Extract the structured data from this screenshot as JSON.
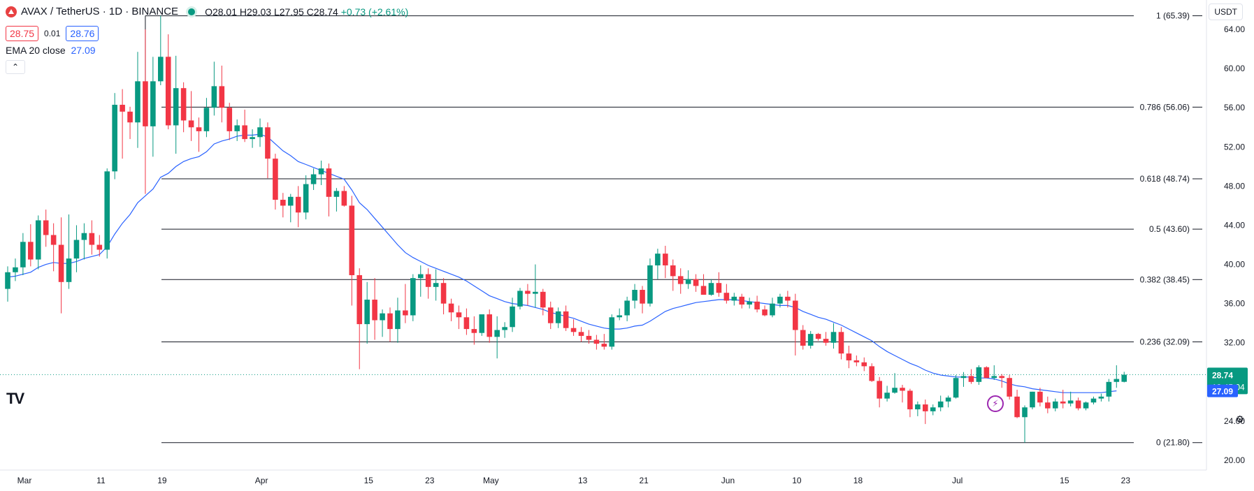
{
  "header": {
    "symbol": "AVAX / TetherUS · 1D · BINANCE",
    "open": "O28.01",
    "high": "H29.03",
    "low": "L27.95",
    "close": "C28.74",
    "change": "+0.73 (+2.61%)"
  },
  "quote": {
    "bid": "28.75",
    "spread": "0.01",
    "ask": "28.76"
  },
  "indicator": {
    "label": "EMA 20 close",
    "value": "27.09"
  },
  "currency": "USDT",
  "collapse_glyph": "⌃",
  "tv_logo": "TV",
  "bolt_glyph": "⚡",
  "gear_glyph": "⚙",
  "colors": {
    "up": "#089981",
    "down": "#f23645",
    "ema": "#2962ff",
    "fib": "#131722",
    "last": "#089981"
  },
  "chart_data": {
    "type": "candlestick",
    "yaxis": {
      "min": 19,
      "max": 67,
      "ticks": [
        "20.00",
        "24.00",
        "28.00",
        "32.00",
        "36.00",
        "40.00",
        "44.00",
        "48.00",
        "52.00",
        "56.00",
        "60.00",
        "64.00"
      ]
    },
    "xaxis": {
      "ticks": [
        {
          "label": "Mar",
          "i": 0
        },
        {
          "label": "11",
          "i": 10
        },
        {
          "label": "19",
          "i": 18
        },
        {
          "label": "Apr",
          "i": 31
        },
        {
          "label": "15",
          "i": 45
        },
        {
          "label": "23",
          "i": 53
        },
        {
          "label": "May",
          "i": 61
        },
        {
          "label": "13",
          "i": 73
        },
        {
          "label": "21",
          "i": 81
        },
        {
          "label": "Jun",
          "i": 92
        },
        {
          "label": "10",
          "i": 101
        },
        {
          "label": "18",
          "i": 109
        },
        {
          "label": "Jul",
          "i": 122
        },
        {
          "label": "15",
          "i": 136
        },
        {
          "label": "23",
          "i": 144
        }
      ]
    },
    "fib_levels": [
      {
        "label": "1 (65.39)",
        "value": 65.39
      },
      {
        "label": "0.786 (56.06)",
        "value": 56.06
      },
      {
        "label": "0.618 (48.74)",
        "value": 48.74
      },
      {
        "label": "0.5 (43.60)",
        "value": 43.6
      },
      {
        "label": "0.382 (38.45)",
        "value": 38.45
      },
      {
        "label": "0.236 (32.09)",
        "value": 32.09
      },
      {
        "label": "0 (21.80)",
        "value": 21.8
      }
    ],
    "last_price": {
      "value": 28.74,
      "label": "28.74",
      "countdown": "13:45:04"
    },
    "ema_label": {
      "value": 27.09,
      "label": "27.09"
    },
    "candles": [
      [
        37.5,
        39.8,
        36.2,
        39.2
      ],
      [
        39.2,
        40.6,
        38.3,
        39.7
      ],
      [
        39.7,
        43.2,
        38.9,
        42.3
      ],
      [
        42.3,
        44.1,
        39.8,
        40.5
      ],
      [
        40.5,
        45.0,
        39.5,
        44.5
      ],
      [
        44.5,
        45.6,
        41.8,
        43.0
      ],
      [
        43.0,
        44.2,
        39.3,
        42.0
      ],
      [
        42.0,
        44.8,
        35.0,
        38.2
      ],
      [
        38.2,
        45.1,
        37.5,
        40.6
      ],
      [
        40.6,
        44.0,
        39.2,
        42.5
      ],
      [
        42.5,
        44.2,
        40.5,
        43.2
      ],
      [
        43.2,
        44.5,
        41.0,
        42.0
      ],
      [
        42.0,
        43.0,
        40.8,
        41.5
      ],
      [
        41.5,
        49.8,
        40.6,
        49.5
      ],
      [
        49.5,
        57.5,
        48.7,
        56.3
      ],
      [
        56.3,
        57.9,
        50.8,
        55.6
      ],
      [
        55.6,
        56.1,
        52.8,
        54.5
      ],
      [
        54.5,
        61.7,
        51.9,
        58.7
      ],
      [
        58.7,
        64.0,
        47.2,
        54.1
      ],
      [
        54.1,
        61.2,
        51.0,
        58.7
      ],
      [
        58.7,
        65.4,
        58.3,
        61.2
      ],
      [
        61.2,
        63.5,
        53.8,
        54.2
      ],
      [
        54.2,
        61.3,
        51.3,
        58.0
      ],
      [
        58.0,
        58.6,
        53.5,
        54.7
      ],
      [
        54.7,
        57.7,
        52.6,
        54.0
      ],
      [
        54.0,
        55.0,
        51.5,
        53.6
      ],
      [
        53.6,
        57.0,
        53.0,
        56.0
      ],
      [
        56.0,
        60.7,
        55.2,
        58.2
      ],
      [
        58.2,
        60.3,
        54.5,
        56.0
      ],
      [
        56.0,
        56.5,
        52.7,
        53.6
      ],
      [
        53.6,
        54.8,
        52.6,
        54.2
      ],
      [
        54.2,
        55.8,
        52.5,
        52.8
      ],
      [
        52.8,
        53.8,
        51.9,
        53.0
      ],
      [
        53.0,
        54.9,
        52.0,
        54.0
      ],
      [
        54.0,
        54.5,
        48.8,
        50.8
      ],
      [
        50.8,
        51.3,
        45.6,
        46.6
      ],
      [
        46.6,
        47.3,
        44.8,
        46.0
      ],
      [
        46.0,
        47.2,
        44.3,
        46.9
      ],
      [
        46.9,
        48.0,
        43.8,
        45.3
      ],
      [
        45.3,
        49.1,
        44.6,
        48.2
      ],
      [
        48.2,
        49.8,
        47.6,
        49.2
      ],
      [
        49.2,
        50.6,
        48.1,
        49.8
      ],
      [
        49.8,
        50.3,
        44.9,
        46.9
      ],
      [
        46.9,
        47.8,
        45.4,
        47.5
      ],
      [
        47.5,
        48.0,
        45.9,
        46.0
      ],
      [
        46.0,
        47.0,
        35.8,
        38.9
      ],
      [
        38.9,
        39.6,
        29.3,
        33.9
      ],
      [
        33.9,
        38.2,
        31.9,
        36.4
      ],
      [
        36.4,
        38.6,
        32.3,
        34.3
      ],
      [
        34.3,
        35.4,
        32.6,
        35.0
      ],
      [
        35.0,
        35.6,
        32.1,
        33.4
      ],
      [
        33.4,
        36.6,
        32.0,
        35.3
      ],
      [
        35.3,
        38.0,
        34.0,
        34.8
      ],
      [
        34.8,
        39.0,
        34.2,
        38.6
      ],
      [
        38.6,
        39.9,
        36.7,
        39.0
      ],
      [
        39.0,
        39.6,
        36.5,
        37.7
      ],
      [
        37.7,
        39.5,
        36.3,
        38.1
      ],
      [
        38.1,
        38.6,
        34.9,
        36.0
      ],
      [
        36.0,
        36.5,
        34.2,
        35.1
      ],
      [
        35.1,
        35.8,
        33.4,
        34.6
      ],
      [
        34.6,
        35.5,
        32.8,
        33.4
      ],
      [
        33.4,
        34.7,
        31.8,
        33.0
      ],
      [
        33.0,
        34.6,
        32.7,
        34.9
      ],
      [
        34.9,
        35.4,
        32.0,
        32.6
      ],
      [
        32.6,
        34.7,
        30.4,
        33.3
      ],
      [
        33.3,
        34.1,
        32.5,
        33.6
      ],
      [
        33.6,
        36.6,
        33.1,
        35.7
      ],
      [
        35.7,
        37.6,
        35.4,
        37.3
      ],
      [
        37.3,
        38.0,
        35.8,
        37.0
      ],
      [
        37.0,
        40.0,
        35.6,
        37.2
      ],
      [
        37.2,
        37.5,
        34.8,
        35.6
      ],
      [
        35.6,
        36.2,
        33.4,
        34.0
      ],
      [
        34.0,
        35.6,
        33.5,
        35.2
      ],
      [
        35.2,
        35.8,
        33.2,
        33.5
      ],
      [
        33.5,
        34.4,
        32.7,
        33.1
      ],
      [
        33.1,
        33.6,
        32.1,
        32.7
      ],
      [
        32.7,
        33.3,
        31.9,
        32.3
      ],
      [
        32.3,
        32.8,
        31.3,
        31.9
      ],
      [
        31.9,
        32.9,
        31.3,
        31.6
      ],
      [
        31.6,
        34.9,
        31.3,
        34.6
      ],
      [
        34.6,
        35.5,
        34.3,
        34.8
      ],
      [
        34.8,
        36.7,
        34.2,
        36.3
      ],
      [
        36.3,
        38.0,
        35.5,
        37.4
      ],
      [
        37.4,
        37.8,
        35.0,
        36.0
      ],
      [
        36.0,
        40.6,
        35.7,
        39.9
      ],
      [
        39.9,
        41.6,
        38.5,
        41.1
      ],
      [
        41.1,
        41.9,
        38.6,
        39.9
      ],
      [
        39.9,
        40.5,
        37.3,
        38.8
      ],
      [
        38.8,
        39.6,
        37.0,
        38.0
      ],
      [
        38.0,
        39.4,
        37.5,
        38.5
      ],
      [
        38.5,
        39.0,
        37.2,
        37.8
      ],
      [
        37.8,
        39.0,
        36.9,
        36.9
      ],
      [
        36.9,
        38.5,
        36.8,
        38.1
      ],
      [
        38.1,
        39.2,
        36.7,
        37.1
      ],
      [
        37.1,
        38.0,
        36.0,
        36.3
      ],
      [
        36.3,
        37.1,
        35.8,
        36.7
      ],
      [
        36.7,
        37.0,
        35.5,
        35.9
      ],
      [
        35.9,
        36.6,
        35.5,
        36.2
      ],
      [
        36.2,
        36.8,
        35.1,
        35.4
      ],
      [
        35.4,
        35.8,
        34.7,
        34.8
      ],
      [
        34.8,
        36.6,
        34.6,
        36.0
      ],
      [
        36.0,
        37.0,
        35.6,
        36.7
      ],
      [
        36.7,
        37.3,
        35.6,
        36.3
      ],
      [
        36.3,
        37.0,
        30.7,
        33.3
      ],
      [
        33.3,
        33.8,
        31.3,
        31.7
      ],
      [
        31.7,
        33.2,
        31.4,
        32.9
      ],
      [
        32.9,
        33.0,
        32.2,
        32.4
      ],
      [
        32.4,
        33.1,
        31.7,
        32.0
      ],
      [
        32.0,
        34.0,
        31.4,
        33.1
      ],
      [
        33.1,
        33.6,
        30.3,
        30.9
      ],
      [
        30.9,
        31.7,
        29.4,
        30.2
      ],
      [
        30.2,
        30.7,
        29.6,
        30.0
      ],
      [
        30.0,
        30.5,
        29.1,
        29.6
      ],
      [
        29.6,
        29.9,
        28.0,
        28.1
      ],
      [
        28.1,
        28.5,
        25.4,
        26.3
      ],
      [
        26.3,
        27.6,
        26.0,
        26.9
      ],
      [
        26.9,
        28.9,
        26.8,
        27.4
      ],
      [
        27.4,
        27.7,
        25.9,
        27.1
      ],
      [
        27.1,
        27.3,
        24.4,
        25.2
      ],
      [
        25.2,
        26.0,
        24.5,
        25.7
      ],
      [
        25.7,
        26.2,
        23.7,
        25.0
      ],
      [
        25.0,
        25.7,
        24.6,
        25.4
      ],
      [
        25.4,
        26.6,
        25.0,
        26.0
      ],
      [
        26.0,
        26.6,
        25.4,
        26.4
      ],
      [
        26.4,
        28.7,
        26.3,
        28.4
      ],
      [
        28.4,
        29.0,
        27.5,
        28.6
      ],
      [
        28.6,
        29.3,
        27.8,
        28.0
      ],
      [
        28.0,
        29.7,
        27.7,
        29.5
      ],
      [
        29.5,
        29.6,
        28.4,
        28.4
      ],
      [
        28.4,
        29.7,
        28.2,
        28.6
      ],
      [
        28.6,
        28.8,
        27.4,
        28.4
      ],
      [
        28.4,
        28.7,
        26.2,
        26.5
      ],
      [
        26.5,
        27.2,
        24.3,
        24.4
      ],
      [
        24.4,
        25.6,
        21.8,
        25.4
      ],
      [
        25.4,
        27.0,
        25.2,
        27.0
      ],
      [
        27.0,
        27.4,
        25.5,
        25.9
      ],
      [
        25.9,
        26.5,
        24.8,
        25.3
      ],
      [
        25.3,
        26.3,
        25.0,
        26.0
      ],
      [
        26.0,
        27.2,
        25.3,
        25.8
      ],
      [
        25.8,
        27.0,
        25.5,
        26.1
      ],
      [
        26.1,
        26.4,
        25.1,
        25.3
      ],
      [
        25.3,
        26.0,
        25.1,
        25.9
      ],
      [
        25.9,
        26.5,
        25.7,
        26.3
      ],
      [
        26.3,
        26.8,
        26.0,
        26.5
      ],
      [
        26.5,
        28.3,
        26.0,
        28.0
      ],
      [
        28.0,
        29.7,
        27.4,
        28.3
      ],
      [
        28.01,
        29.03,
        27.95,
        28.74
      ]
    ],
    "ema20": [
      38.7,
      38.8,
      39.0,
      39.2,
      39.7,
      40.0,
      40.2,
      40.1,
      40.1,
      40.3,
      40.6,
      40.8,
      41.0,
      41.8,
      43.1,
      44.2,
      45.1,
      46.3,
      47.0,
      47.7,
      48.9,
      49.3,
      50.0,
      50.5,
      50.8,
      51.0,
      51.5,
      52.3,
      52.6,
      52.8,
      53.1,
      53.2,
      53.2,
      53.3,
      53.0,
      52.3,
      51.6,
      51.1,
      50.5,
      50.2,
      49.9,
      49.6,
      49.3,
      49.0,
      48.7,
      47.6,
      46.3,
      45.6,
      44.7,
      43.8,
      42.9,
      42.0,
      41.2,
      40.7,
      40.3,
      39.9,
      39.6,
      39.3,
      39.0,
      38.7,
      38.3,
      37.8,
      37.3,
      36.8,
      36.5,
      36.2,
      36.0,
      35.9,
      35.8,
      35.6,
      35.4,
      35.1,
      34.9,
      34.7,
      34.5,
      34.2,
      33.9,
      33.7,
      33.5,
      33.4,
      33.4,
      33.5,
      33.7,
      33.8,
      34.2,
      34.7,
      35.2,
      35.5,
      35.7,
      35.9,
      36.1,
      36.2,
      36.3,
      36.4,
      36.4,
      36.4,
      36.3,
      36.2,
      36.1,
      36.0,
      35.9,
      35.8,
      35.8,
      35.6,
      35.2,
      34.9,
      34.6,
      34.4,
      34.1,
      33.8,
      33.4,
      33.0,
      32.6,
      32.2,
      31.6,
      31.1,
      30.7,
      30.3,
      29.9,
      29.6,
      29.2,
      28.9,
      28.7,
      28.6,
      28.5,
      28.5,
      28.5,
      28.4,
      28.4,
      28.3,
      28.1,
      27.8,
      27.6,
      27.5,
      27.3,
      27.2,
      27.1,
      27.0,
      26.9,
      26.9,
      26.9,
      26.9,
      26.9,
      26.9,
      27.0,
      27.09
    ]
  }
}
